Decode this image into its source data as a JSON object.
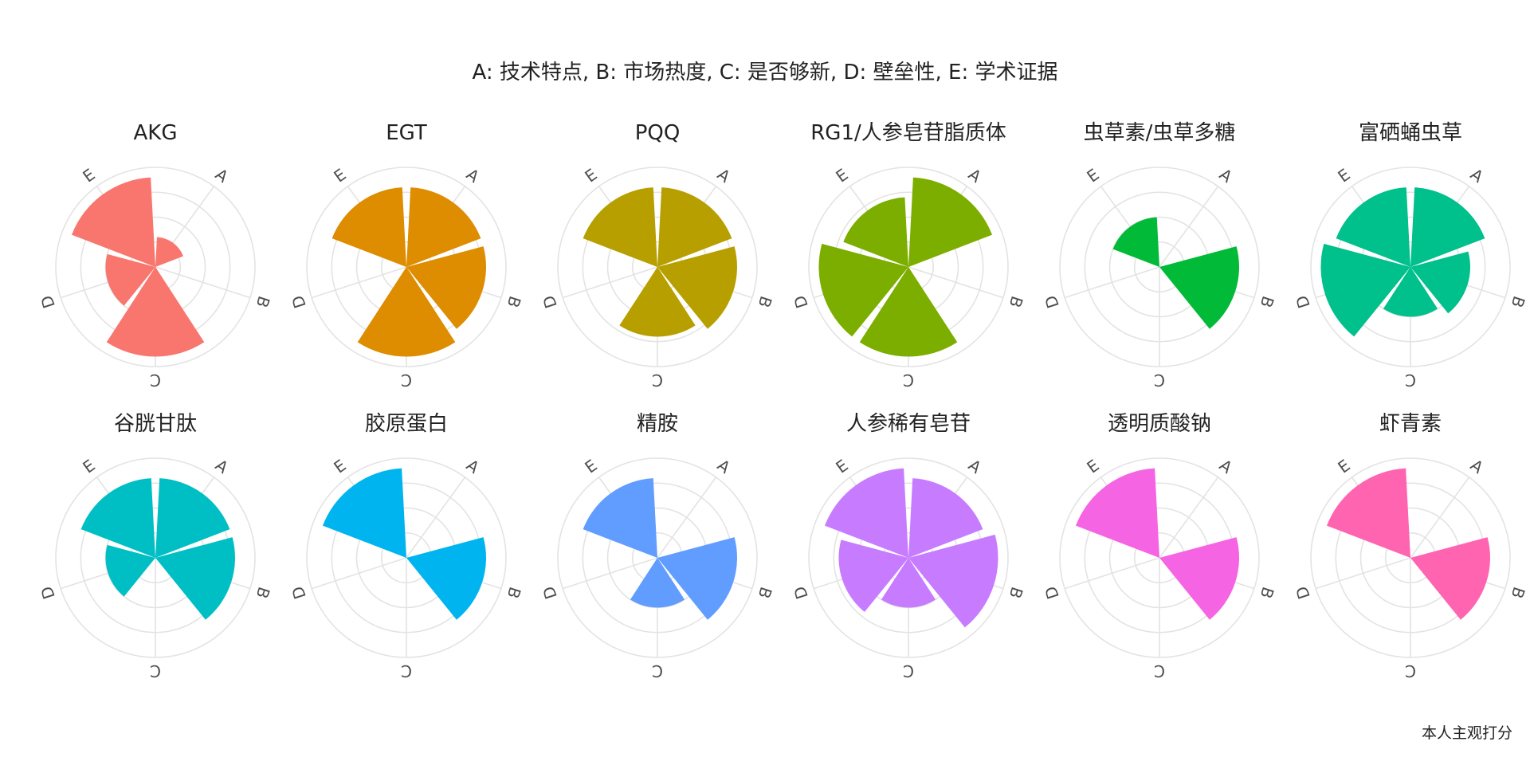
{
  "chart_data": {
    "type": "polar-bar",
    "subtitle": "A: 技术特点, B: 市场热度, C: 是否够新, D: 壁垒性, E: 学术证据",
    "caption": "本人主观打分",
    "axes": [
      "A",
      "B",
      "C",
      "D",
      "E"
    ],
    "rlim": [
      0,
      5
    ],
    "grid": true,
    "legend": "none",
    "panels": [
      {
        "name": "AKG",
        "color": "#F8766D",
        "values": {
          "A": 1.5,
          "B": 0,
          "C": 4.5,
          "D": 2.5,
          "E": 4.5
        }
      },
      {
        "name": "EGT",
        "color": "#DE8C00",
        "values": {
          "A": 4,
          "B": 4,
          "C": 4.5,
          "D": 0,
          "E": 4
        }
      },
      {
        "name": "PQQ",
        "color": "#B79F00",
        "values": {
          "A": 4,
          "B": 4,
          "C": 3.5,
          "D": 0,
          "E": 4
        }
      },
      {
        "name": "RG1/人参皂苷脂质体",
        "color": "#7CAE00",
        "values": {
          "A": 4.5,
          "B": 0,
          "C": 4.5,
          "D": 4.5,
          "E": 3.5
        }
      },
      {
        "name": "虫草素/虫草多糖",
        "color": "#00BA38",
        "values": {
          "A": 0,
          "B": 4,
          "C": 0,
          "D": 0,
          "E": 2.5
        }
      },
      {
        "name": "富硒蛹虫草",
        "color": "#00C08B",
        "values": {
          "A": 4,
          "B": 3,
          "C": 2.5,
          "D": 4.5,
          "E": 4
        }
      },
      {
        "name": "谷胱甘肽",
        "color": "#00BFC4",
        "values": {
          "A": 4,
          "B": 4,
          "C": 0,
          "D": 2.5,
          "E": 4
        }
      },
      {
        "name": "胶原蛋白",
        "color": "#00B4F0",
        "values": {
          "A": 0,
          "B": 4,
          "C": 0,
          "D": 0,
          "E": 4.5
        }
      },
      {
        "name": "精胺",
        "color": "#619CFF",
        "values": {
          "A": 0,
          "B": 4,
          "C": 2.5,
          "D": 0,
          "E": 4
        }
      },
      {
        "name": "人参稀有皂苷",
        "color": "#C77CFF",
        "values": {
          "A": 4,
          "B": 4.5,
          "C": 2.5,
          "D": 3.5,
          "E": 4.5
        }
      },
      {
        "name": "透明质酸钠",
        "color": "#F564E3",
        "values": {
          "A": 0,
          "B": 4,
          "C": 0,
          "D": 0,
          "E": 4.5
        }
      },
      {
        "name": "虾青素",
        "color": "#FF64B0",
        "values": {
          "A": 0,
          "B": 4,
          "C": 0,
          "D": 0,
          "E": 4.5
        }
      }
    ]
  }
}
